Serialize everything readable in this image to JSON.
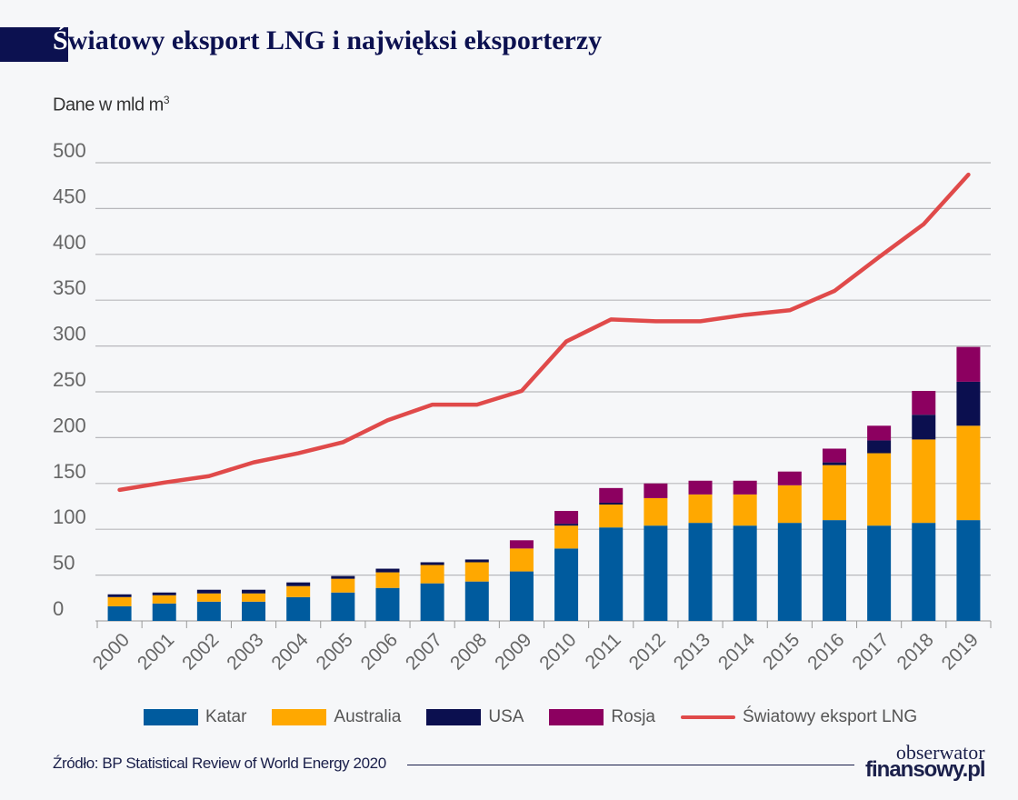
{
  "header": {
    "title_first": "Ś",
    "title_rest": "wiatowy eksport LNG i najwięksi eksporterzy",
    "unit_text": "Dane w mld m",
    "unit_sup": "3"
  },
  "chart_data": {
    "type": "bar",
    "stacked": true,
    "title": "Światowy eksport LNG i najwięksi eksporterzy",
    "ylabel": "Dane w mld m3",
    "ylim": [
      0,
      500
    ],
    "yticks": [
      0,
      50,
      100,
      150,
      200,
      250,
      300,
      350,
      400,
      450,
      500
    ],
    "grid": true,
    "legend_position": "bottom",
    "categories": [
      "2000",
      "2001",
      "2002",
      "2003",
      "2004",
      "2005",
      "2006",
      "2007",
      "2008",
      "2009",
      "2010",
      "2011",
      "2012",
      "2013",
      "2014",
      "2015",
      "2016",
      "2017",
      "2018",
      "2019"
    ],
    "series": [
      {
        "name": "Katar",
        "type": "bar",
        "color": "#005b9e",
        "values": [
          16,
          19,
          21,
          21,
          26,
          31,
          36,
          41,
          43,
          54,
          79,
          102,
          104,
          107,
          104,
          107,
          110,
          104,
          107,
          110
        ]
      },
      {
        "name": "Australia",
        "type": "bar",
        "color": "#ffa800",
        "values": [
          10,
          9,
          9,
          9,
          12,
          15,
          17,
          20,
          21,
          25,
          25,
          25,
          30,
          31,
          34,
          41,
          60,
          79,
          91,
          103
        ]
      },
      {
        "name": "USA",
        "type": "bar",
        "color": "#0b0f4f",
        "values": [
          3,
          3,
          4,
          4,
          4,
          3,
          4,
          3,
          3,
          0,
          2,
          2,
          0,
          0,
          0,
          0,
          3,
          14,
          27,
          48
        ]
      },
      {
        "name": "Rosja",
        "type": "bar",
        "color": "#8c0060",
        "values": [
          0,
          0,
          0,
          0,
          0,
          0,
          0,
          0,
          0,
          9,
          14,
          16,
          16,
          15,
          15,
          15,
          15,
          16,
          26,
          38
        ]
      },
      {
        "name": "Światowy eksport LNG",
        "type": "line",
        "color": "#e04a4a",
        "values": [
          143,
          151,
          158,
          173,
          183,
          195,
          219,
          236,
          236,
          251,
          305,
          329,
          327,
          327,
          334,
          339,
          360,
          397,
          433,
          487
        ]
      }
    ]
  },
  "footer": {
    "source": "Źródło: BP Statistical Review of World Energy 2020",
    "logo_line1": "obserwator",
    "logo_line2": "finansowy.pl"
  }
}
